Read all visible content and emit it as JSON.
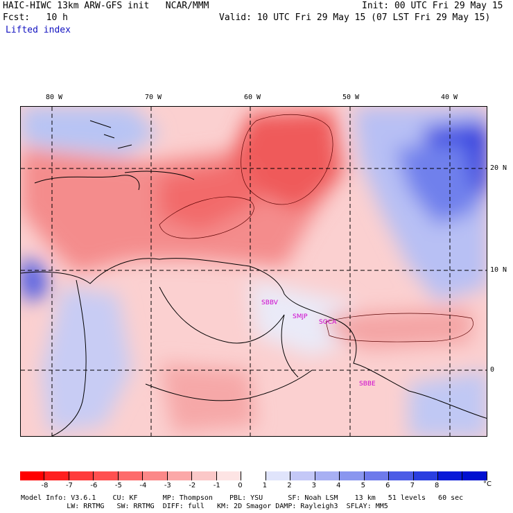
{
  "header": {
    "model_title": "HAIC-HIWC 13km ARW-GFS init   NCAR/MMM",
    "init_time": "Init: 00 UTC Fri 29 May 15",
    "forecast_label": "Fcst:   10 h",
    "valid_time": "Valid: 10 UTC Fri 29 May 15 (07 LST Fri 29 May 15)",
    "field_name": "Lifted index"
  },
  "map": {
    "lon_labels": [
      "80 W",
      "70 W",
      "60 W",
      "50 W",
      "40 W"
    ],
    "lat_labels": [
      "20 N",
      "10 N",
      "0"
    ],
    "stations": [
      "SBBV",
      "SMJP",
      "SOCA",
      "SBBE"
    ],
    "colors": {
      "warm_max": "#e83030",
      "cool_max": "#1830d8",
      "coast": "#000000",
      "station": "#cc00cc"
    }
  },
  "colorbar": {
    "ticks": [
      "-8",
      "-7",
      "-6",
      "-5",
      "-4",
      "-3",
      "-2",
      "-1",
      "0",
      "1",
      "2",
      "3",
      "4",
      "5",
      "6",
      "7",
      "8"
    ],
    "unit": "°C",
    "colors": [
      "#ff0000",
      "#ff2020",
      "#ff3b3b",
      "#ff5050",
      "#fd6b6b",
      "#fb8888",
      "#fba8a8",
      "#fbc8c8",
      "#fde4e4",
      "#ffffff",
      "#e0e4fb",
      "#c4c8f7",
      "#a8b0f3",
      "#8a96ef",
      "#6e7aeb",
      "#4c5ce6",
      "#2a3ee0",
      "#0a1ad8",
      "#0010d0"
    ]
  },
  "footer": {
    "line1": "Model Info: V3.6.1    CU: KF      MP: Thompson    PBL: YSU      SF: Noah LSM    13 km   51 levels   60 sec",
    "line2": "           LW: RRTMG   SW: RRTMG  DIFF: full   KM: 2D Smagor DAMP: Rayleigh3  SFLAY: MM5"
  }
}
